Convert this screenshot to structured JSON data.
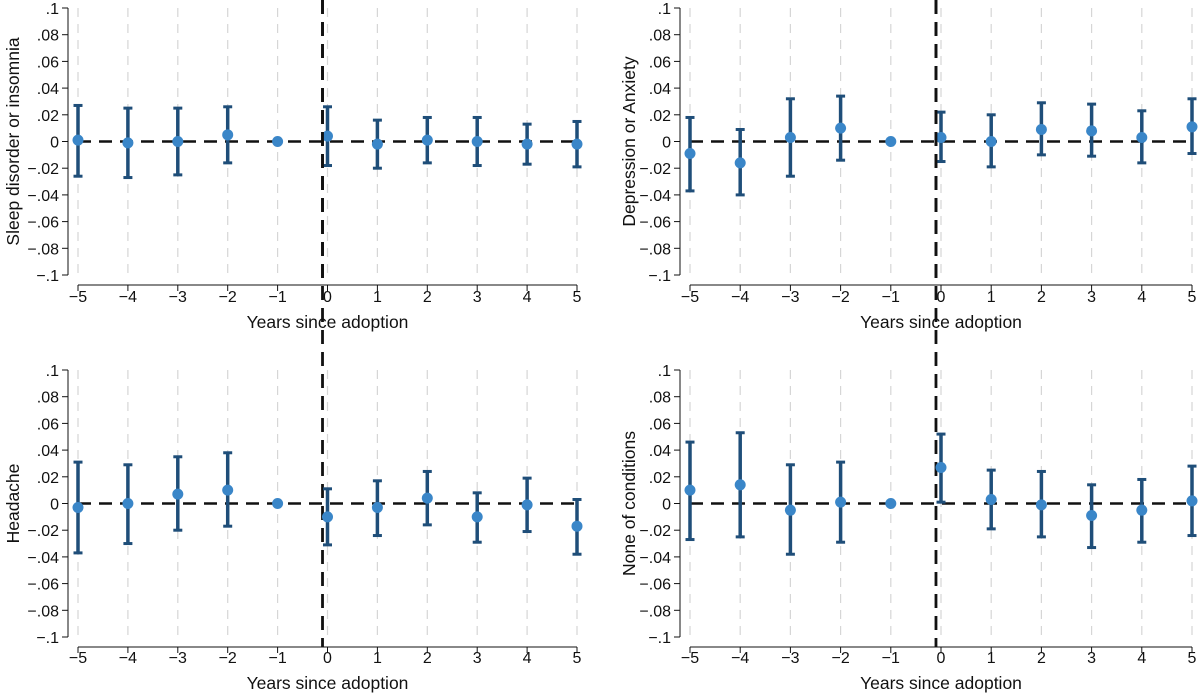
{
  "chart_data": [
    {
      "type": "scatter",
      "ylabel": "Sleep disorder or insomnia",
      "xlabel": "Years since adoption",
      "x": [
        -5,
        -4,
        -3,
        -2,
        -1,
        0,
        1,
        2,
        3,
        4,
        5
      ],
      "estimates": [
        0.001,
        -0.001,
        0.0,
        0.005,
        0.0,
        0.004,
        -0.002,
        0.001,
        0.0,
        -0.002,
        -0.002
      ],
      "ci_low": [
        -0.026,
        -0.027,
        -0.025,
        -0.016,
        0.0,
        -0.018,
        -0.02,
        -0.016,
        -0.018,
        -0.017,
        -0.019
      ],
      "ci_high": [
        0.027,
        0.025,
        0.025,
        0.026,
        0.0,
        0.026,
        0.016,
        0.018,
        0.018,
        0.013,
        0.015
      ],
      "ylim": [
        -0.1,
        0.1
      ],
      "yticks": [
        ".1",
        ".08",
        ".06",
        ".04",
        ".02",
        "0",
        "-.02",
        "-.04",
        "-.06",
        "-.08",
        "-.1"
      ],
      "xticks": [
        "-5",
        "-4",
        "-3",
        "-2",
        "-1",
        "0",
        "1",
        "2",
        "3",
        "4",
        "5"
      ],
      "reference_lines": {
        "horizontal_y": 0,
        "vertical_x": -0.1
      },
      "grid": "vertical dashed"
    },
    {
      "type": "scatter",
      "ylabel": "Depression or Anxiety",
      "xlabel": "Years since adoption",
      "x": [
        -5,
        -4,
        -3,
        -2,
        -1,
        0,
        1,
        2,
        3,
        4,
        5
      ],
      "estimates": [
        -0.009,
        -0.016,
        0.003,
        0.01,
        0.0,
        0.003,
        0.0,
        0.009,
        0.008,
        0.003,
        0.011
      ],
      "ci_low": [
        -0.037,
        -0.04,
        -0.026,
        -0.014,
        0.0,
        -0.015,
        -0.019,
        -0.01,
        -0.011,
        -0.016,
        -0.009
      ],
      "ci_high": [
        0.018,
        0.009,
        0.032,
        0.034,
        0.0,
        0.022,
        0.02,
        0.029,
        0.028,
        0.023,
        0.032
      ],
      "ylim": [
        -0.1,
        0.1
      ],
      "yticks": [
        ".1",
        ".08",
        ".06",
        ".04",
        ".02",
        "0",
        "-.02",
        "-.04",
        "-.06",
        "-.08",
        "-.1"
      ],
      "xticks": [
        "-5",
        "-4",
        "-3",
        "-2",
        "-1",
        "0",
        "1",
        "2",
        "3",
        "4",
        "5"
      ],
      "reference_lines": {
        "horizontal_y": 0,
        "vertical_x": -0.1
      },
      "grid": "vertical dashed"
    },
    {
      "type": "scatter",
      "ylabel": "Headache",
      "xlabel": "Years since adoption",
      "x": [
        -5,
        -4,
        -3,
        -2,
        -1,
        0,
        1,
        2,
        3,
        4,
        5
      ],
      "estimates": [
        -0.003,
        0.0,
        0.007,
        0.01,
        0.0,
        -0.01,
        -0.003,
        0.004,
        -0.01,
        -0.001,
        -0.017
      ],
      "ci_low": [
        -0.037,
        -0.03,
        -0.02,
        -0.017,
        0.0,
        -0.031,
        -0.024,
        -0.016,
        -0.029,
        -0.021,
        -0.038
      ],
      "ci_high": [
        0.031,
        0.029,
        0.035,
        0.038,
        0.0,
        0.011,
        0.017,
        0.024,
        0.008,
        0.019,
        0.003
      ],
      "ylim": [
        -0.1,
        0.1
      ],
      "yticks": [
        ".1",
        ".08",
        ".06",
        ".04",
        ".02",
        "0",
        "-.02",
        "-.04",
        "-.06",
        "-.08",
        "-.1"
      ],
      "xticks": [
        "-5",
        "-4",
        "-3",
        "-2",
        "-1",
        "0",
        "1",
        "2",
        "3",
        "4",
        "5"
      ],
      "reference_lines": {
        "horizontal_y": 0,
        "vertical_x": -0.1
      },
      "grid": "vertical dashed"
    },
    {
      "type": "scatter",
      "ylabel": "None of conditions",
      "xlabel": "Years since adoption",
      "x": [
        -5,
        -4,
        -3,
        -2,
        -1,
        0,
        1,
        2,
        3,
        4,
        5
      ],
      "estimates": [
        0.01,
        0.014,
        -0.005,
        0.001,
        0.0,
        0.027,
        0.003,
        -0.001,
        -0.009,
        -0.005,
        0.002
      ],
      "ci_low": [
        -0.027,
        -0.025,
        -0.038,
        -0.029,
        0.0,
        0.001,
        -0.019,
        -0.025,
        -0.033,
        -0.029,
        -0.024
      ],
      "ci_high": [
        0.046,
        0.053,
        0.029,
        0.031,
        0.0,
        0.052,
        0.025,
        0.024,
        0.014,
        0.018,
        0.028
      ],
      "ylim": [
        -0.1,
        0.1
      ],
      "yticks": [
        ".1",
        ".08",
        ".06",
        ".04",
        ".02",
        "0",
        "-.02",
        "-.04",
        "-.06",
        "-.08",
        "-.1"
      ],
      "xticks": [
        "-5",
        "-4",
        "-3",
        "-2",
        "-1",
        "0",
        "1",
        "2",
        "3",
        "4",
        "5"
      ],
      "reference_lines": {
        "horizontal_y": 0,
        "vertical_x": -0.1
      },
      "grid": "vertical dashed"
    }
  ],
  "colors": {
    "point": "#3a86c8",
    "errorbar": "#1f4e79",
    "reference_line": "#111111",
    "grid": "#d6d6d6",
    "axis": "#111111"
  }
}
